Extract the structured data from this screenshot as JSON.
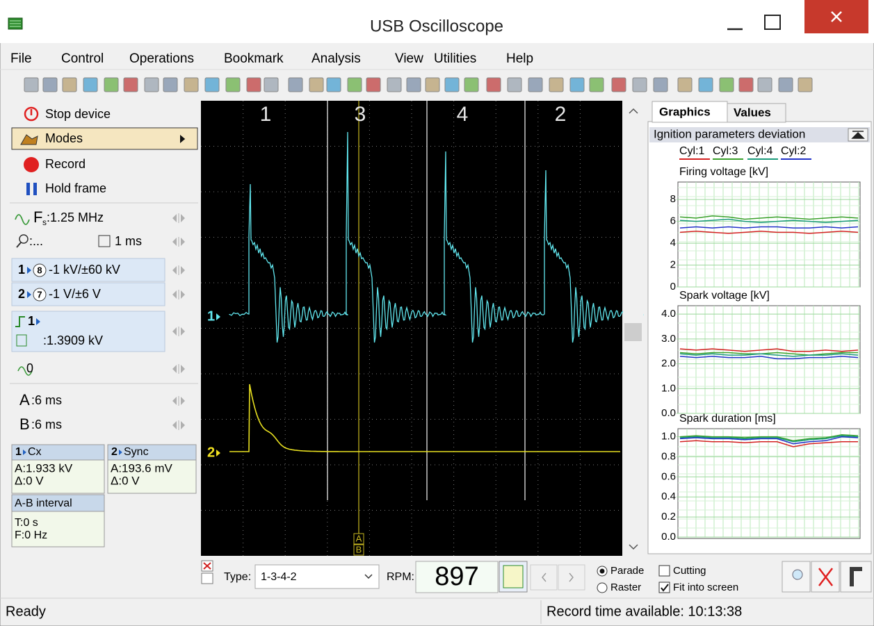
{
  "window": {
    "title": "USB Oscilloscope"
  },
  "menu": [
    "File",
    "Control",
    "Operations",
    "Bookmark",
    "Analysis",
    "View",
    "Utilities",
    "Help"
  ],
  "left_panel": {
    "stop_device": "Stop device",
    "modes": "Modes",
    "record": "Record",
    "hold_frame": "Hold frame",
    "sample_rate": {
      "symbol": "F",
      "subscript": "s",
      "value": ":1.25 MHz"
    },
    "zoom": {
      "value": ":...",
      "timebase": "1 ms"
    },
    "channels": [
      {
        "id": "1",
        "probe": "8",
        "range": "-1 kV/±60 kV"
      },
      {
        "id": "2",
        "probe": "7",
        "range": "-1 V/±6 V"
      }
    ],
    "trigger": {
      "channel": "1",
      "level": ":1.3909 kV"
    },
    "offset": "0",
    "cursors": [
      {
        "name": "A",
        "value": ":6 ms"
      },
      {
        "name": "B",
        "value": ":6 ms"
      }
    ],
    "measurements": [
      {
        "channel": "1",
        "name": "Cx",
        "a": "A:1.933 kV",
        "delta": "Δ:0 V"
      },
      {
        "channel": "2",
        "name": "Sync",
        "a": "A:193.6 mV",
        "delta": "Δ:0 V"
      }
    ],
    "interval": {
      "title": "A-B interval",
      "t": "T:0 s",
      "f": "F:0 Hz"
    }
  },
  "scope": {
    "channel_markers": [
      "1",
      "2"
    ],
    "cylinders": [
      "1",
      "3",
      "4",
      "2"
    ],
    "cursor_labels": [
      "A",
      "B"
    ]
  },
  "right_panel": {
    "tabs": [
      "Graphics",
      "Values"
    ],
    "header": "Ignition parameters deviation",
    "legend": [
      {
        "name": "Cyl:1",
        "color": "#d42020"
      },
      {
        "name": "Cyl:3",
        "color": "#3aa02a"
      },
      {
        "name": "Cyl:4",
        "color": "#1a9a7a"
      },
      {
        "name": "Cyl:2",
        "color": "#2030c8"
      }
    ],
    "charts": [
      {
        "title": "Firing voltage [kV]",
        "ylim": [
          0,
          9.6
        ],
        "yticks": [
          0,
          2,
          4,
          6,
          8
        ],
        "series": [
          {
            "values": [
              5.0,
              5.1,
              5.0,
              4.9,
              5.0,
              5.1,
              5.0,
              5.0,
              4.9,
              5.0,
              5.1,
              5.0
            ]
          },
          {
            "values": [
              6.4,
              6.3,
              6.5,
              6.4,
              6.2,
              6.3,
              6.4,
              6.3,
              6.2,
              6.3,
              6.4,
              6.3
            ]
          },
          {
            "values": [
              6.1,
              6.0,
              6.1,
              6.2,
              6.0,
              5.9,
              6.0,
              6.1,
              6.0,
              5.9,
              6.0,
              6.1
            ]
          },
          {
            "values": [
              5.4,
              5.5,
              5.4,
              5.5,
              5.4,
              5.5,
              5.5,
              5.4,
              5.4,
              5.5,
              5.4,
              5.5
            ]
          }
        ]
      },
      {
        "title": "Spark voltage [kV]",
        "ylim": [
          0,
          4.34
        ],
        "yticks": [
          {
            "value": 0,
            "label": "0.0"
          },
          {
            "value": 1,
            "label": "1.0"
          },
          {
            "value": 2,
            "label": "2.0"
          },
          {
            "value": 3,
            "label": "3.0"
          },
          {
            "value": 4,
            "label": "4.0"
          }
        ],
        "series": [
          {
            "values": [
              2.6,
              2.55,
              2.6,
              2.55,
              2.5,
              2.55,
              2.6,
              2.5,
              2.5,
              2.55,
              2.5,
              2.55
            ]
          },
          {
            "values": [
              2.45,
              2.4,
              2.45,
              2.45,
              2.4,
              2.4,
              2.45,
              2.4,
              2.35,
              2.4,
              2.45,
              2.45
            ]
          },
          {
            "values": [
              2.4,
              2.35,
              2.4,
              2.35,
              2.35,
              2.4,
              2.35,
              2.3,
              2.35,
              2.35,
              2.4,
              2.35
            ]
          },
          {
            "values": [
              2.3,
              2.25,
              2.3,
              2.25,
              2.25,
              2.3,
              2.2,
              2.2,
              2.25,
              2.25,
              2.3,
              2.25
            ]
          }
        ]
      },
      {
        "title": "Spark duration [ms]",
        "ylim": [
          0,
          1.08
        ],
        "yticks": [
          {
            "value": 0,
            "label": "0.0"
          },
          0.2,
          0.4,
          0.6,
          0.8,
          {
            "value": 1,
            "label": "1.0"
          }
        ],
        "series": [
          {
            "values": [
              0.95,
              0.96,
              0.95,
              0.95,
              0.94,
              0.95,
              0.95,
              0.9,
              0.93,
              0.94,
              0.95,
              0.95
            ]
          },
          {
            "values": [
              1.0,
              1.01,
              1.0,
              1.0,
              0.99,
              1.0,
              1.0,
              0.96,
              0.98,
              0.99,
              1.02,
              1.01
            ]
          },
          {
            "values": [
              0.99,
              1.0,
              0.99,
              0.99,
              0.98,
              0.99,
              0.99,
              0.95,
              0.97,
              0.98,
              1.01,
              1.0
            ]
          },
          {
            "values": [
              0.98,
              0.99,
              0.98,
              0.98,
              0.97,
              0.98,
              0.98,
              0.93,
              0.95,
              0.96,
              1.0,
              0.99
            ]
          }
        ]
      }
    ]
  },
  "bottom_bar": {
    "type_label": "Type:",
    "type_value": "1-3-4-2",
    "rpm_label": "RPM:",
    "rpm": "897",
    "modes": [
      "Parade",
      "Raster"
    ],
    "options": [
      "Cutting",
      "Fit into screen"
    ]
  },
  "status_bar": {
    "left": "Ready",
    "right": "Record time available: 10:13:38"
  }
}
